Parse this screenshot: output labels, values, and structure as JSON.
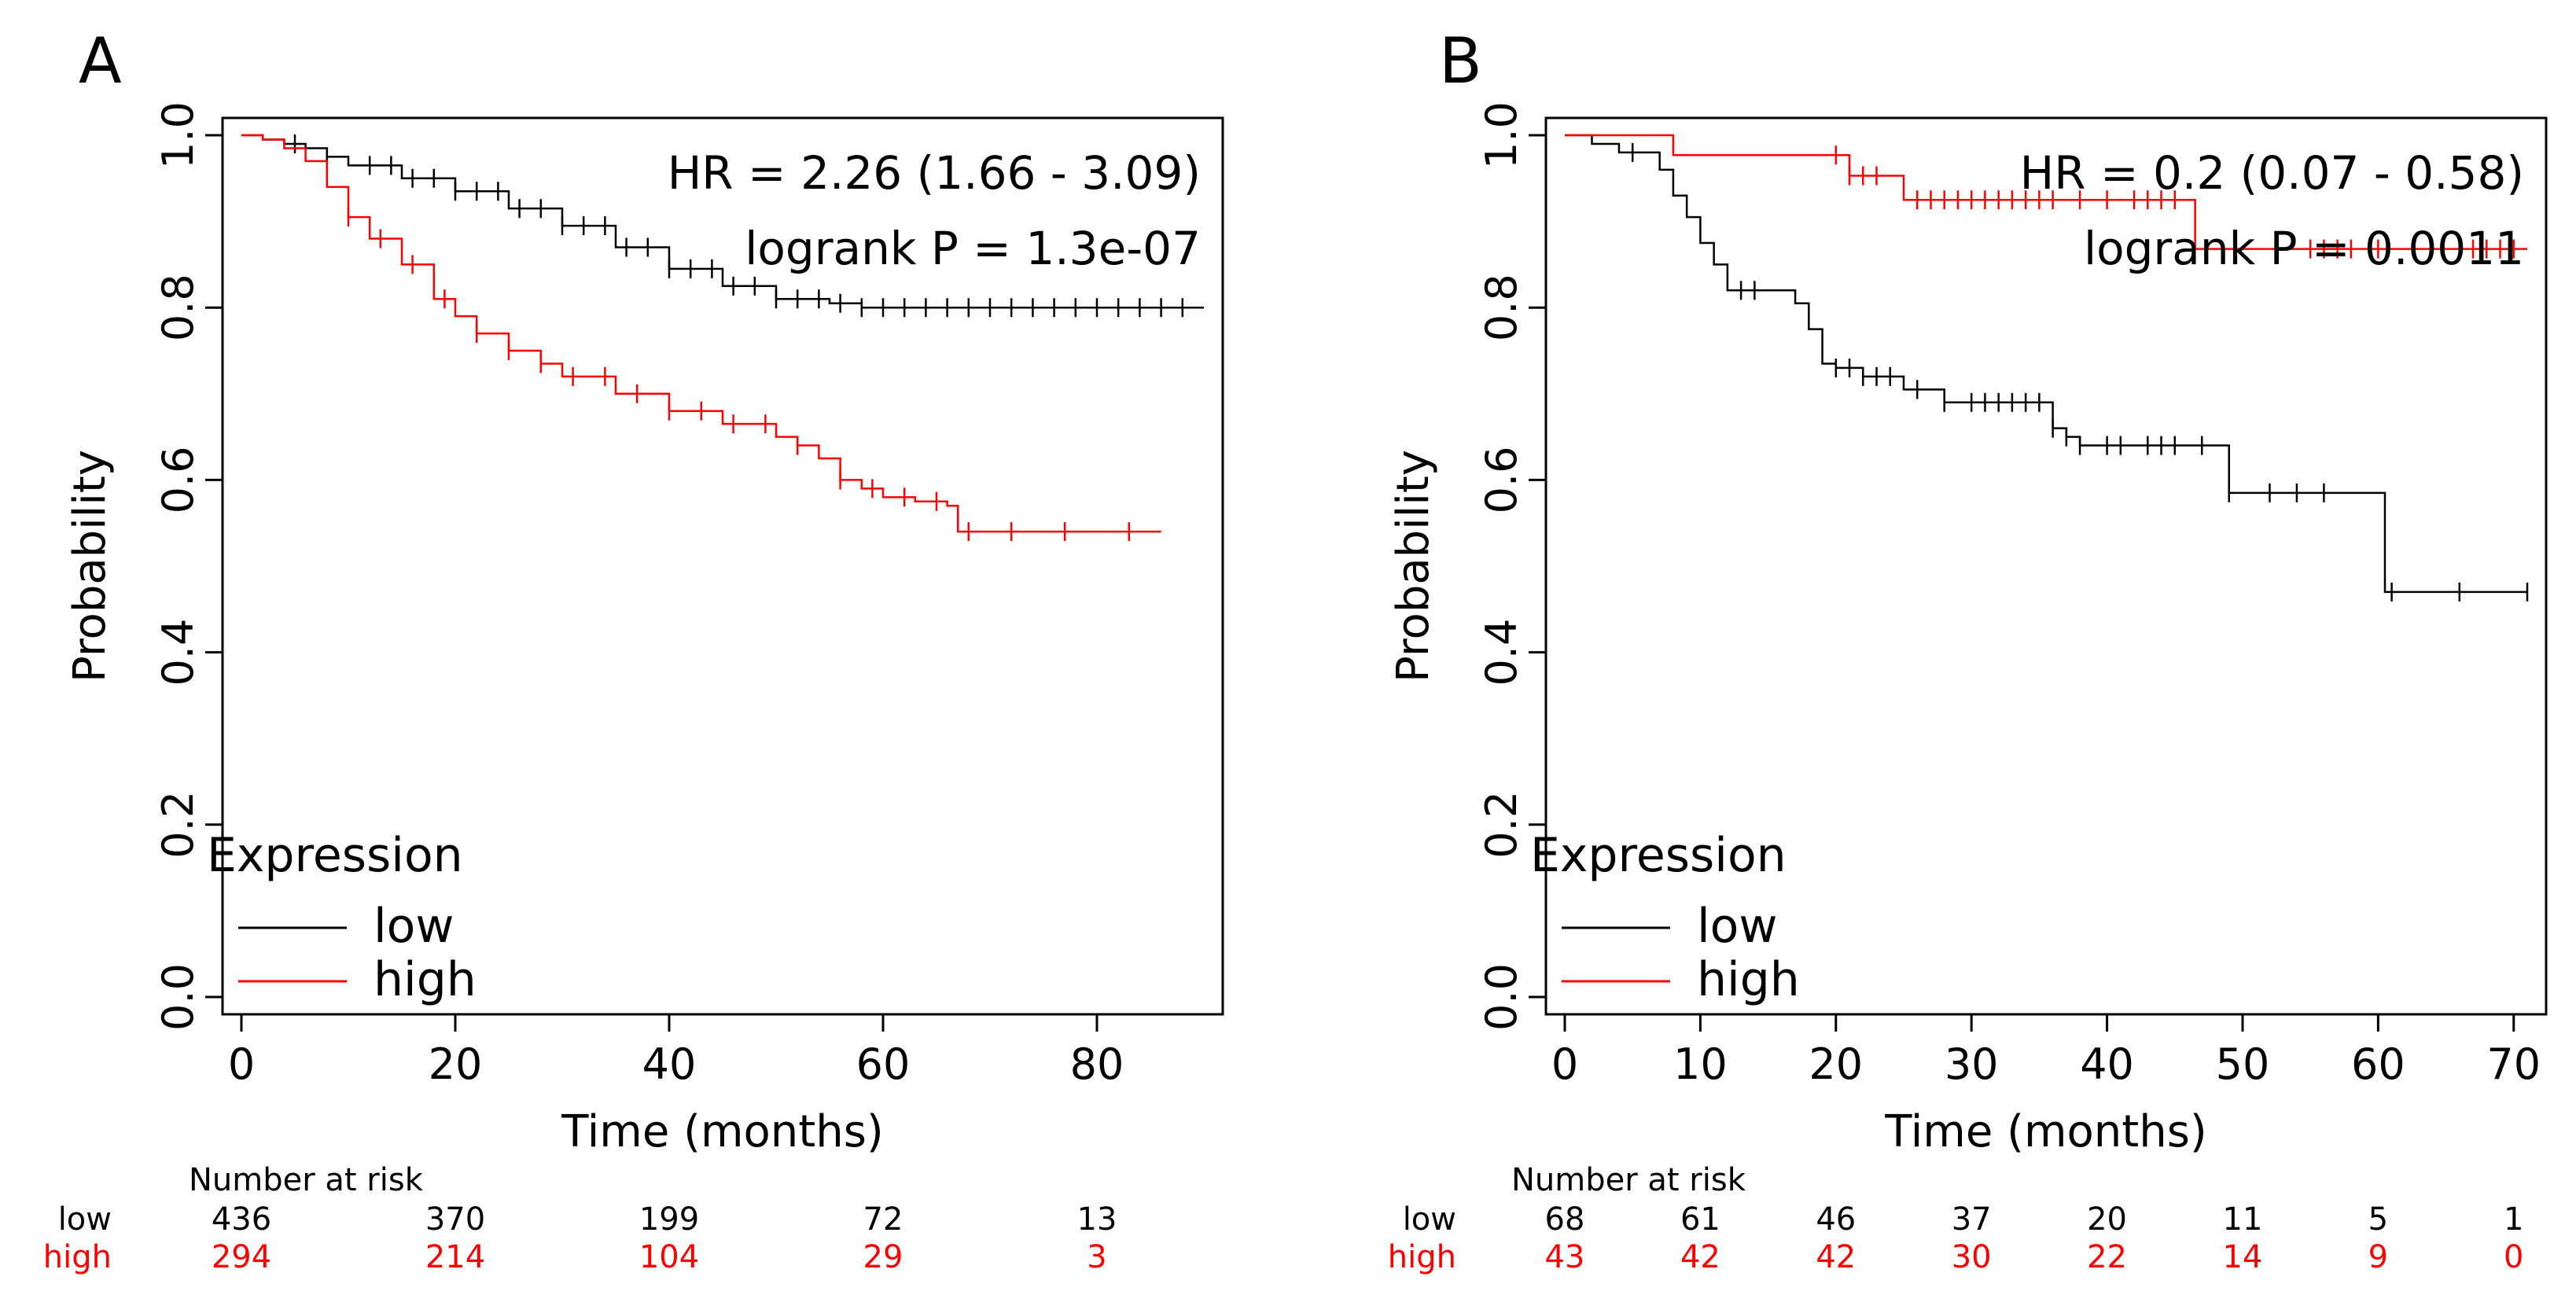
{
  "chart_data": [
    {
      "type": "line",
      "panel_label": "A",
      "title": "",
      "xlabel": "Time (months)",
      "ylabel": "Probability",
      "xlim": [
        0,
        90
      ],
      "ylim": [
        0,
        1
      ],
      "xticks": [
        "0",
        "20",
        "40",
        "60",
        "80"
      ],
      "yticks": [
        "0.0",
        "0.2",
        "0.4",
        "0.6",
        "0.8",
        "1.0"
      ],
      "xtick_values": [
        0,
        20,
        40,
        60,
        80
      ],
      "ytick_values": [
        0,
        0.2,
        0.4,
        0.6,
        0.8,
        1.0
      ],
      "grid": false,
      "annotations": [
        "HR = 2.26 (1.66 - 3.09)",
        "logrank P = 1.3e-07"
      ],
      "legend": {
        "title": "Expression",
        "entries": [
          "low",
          "high"
        ],
        "position": "bottom-left"
      },
      "series": [
        {
          "name": "low",
          "color": "#000000",
          "x": [
            0,
            2,
            4,
            6,
            8,
            10,
            15,
            20,
            25,
            30,
            35,
            40,
            45,
            50,
            55,
            58,
            60,
            65,
            70,
            75,
            80,
            85,
            90
          ],
          "y": [
            1.0,
            0.995,
            0.99,
            0.985,
            0.975,
            0.965,
            0.95,
            0.935,
            0.915,
            0.895,
            0.87,
            0.845,
            0.825,
            0.81,
            0.805,
            0.8,
            0.8,
            0.8,
            0.8,
            0.8,
            0.8,
            0.8,
            0.8
          ],
          "censor_x": [
            5,
            8,
            12,
            14,
            16,
            18,
            20,
            22,
            24,
            26,
            28,
            30,
            32,
            34,
            36,
            38,
            40,
            42,
            44,
            46,
            48,
            50,
            52,
            54,
            56,
            58,
            60,
            62,
            64,
            66,
            68,
            70,
            72,
            74,
            76,
            78,
            80,
            82,
            84,
            86,
            88
          ]
        },
        {
          "name": "high",
          "color": "#ff0000",
          "x": [
            0,
            2,
            4,
            6,
            8,
            10,
            12,
            15,
            18,
            20,
            22,
            25,
            28,
            30,
            35,
            40,
            45,
            50,
            52,
            54,
            56,
            58,
            60,
            63,
            66,
            67,
            70,
            75,
            80,
            86
          ],
          "y": [
            1.0,
            0.995,
            0.985,
            0.97,
            0.94,
            0.905,
            0.88,
            0.85,
            0.81,
            0.79,
            0.77,
            0.75,
            0.735,
            0.72,
            0.7,
            0.68,
            0.665,
            0.65,
            0.64,
            0.625,
            0.6,
            0.59,
            0.58,
            0.575,
            0.57,
            0.54,
            0.54,
            0.54,
            0.54,
            0.54
          ],
          "censor_x": [
            10,
            13,
            16,
            19,
            22,
            25,
            28,
            31,
            34,
            37,
            40,
            43,
            46,
            49,
            52,
            56,
            59,
            62,
            65,
            68,
            72,
            77,
            83
          ]
        }
      ],
      "risk_table": {
        "title": "Number at risk",
        "times": [
          0,
          20,
          40,
          60,
          80
        ],
        "rows": [
          {
            "label": "low",
            "color": "#000000",
            "values": [
              "436",
              "370",
              "199",
              "72",
              "13"
            ]
          },
          {
            "label": "high",
            "color": "#ff0000",
            "values": [
              "294",
              "214",
              "104",
              "29",
              "3"
            ]
          }
        ]
      }
    },
    {
      "type": "line",
      "panel_label": "B",
      "title": "",
      "xlabel": "Time (months)",
      "ylabel": "Probability",
      "xlim": [
        0,
        71
      ],
      "ylim": [
        0,
        1
      ],
      "xticks": [
        "0",
        "10",
        "20",
        "30",
        "40",
        "50",
        "60",
        "70"
      ],
      "yticks": [
        "0.0",
        "0.2",
        "0.4",
        "0.6",
        "0.8",
        "1.0"
      ],
      "xtick_values": [
        0,
        10,
        20,
        30,
        40,
        50,
        60,
        70
      ],
      "ytick_values": [
        0,
        0.2,
        0.4,
        0.6,
        0.8,
        1.0
      ],
      "grid": false,
      "annotations": [
        "HR = 0.2 (0.07 - 0.58)",
        "logrank P = 0.0011"
      ],
      "legend": {
        "title": "Expression",
        "entries": [
          "low",
          "high"
        ],
        "position": "bottom-left"
      },
      "series": [
        {
          "name": "low",
          "color": "#000000",
          "x": [
            0,
            2,
            4,
            7,
            8,
            9,
            10,
            11,
            12,
            13,
            17,
            18,
            19,
            20,
            22,
            25,
            28,
            36,
            37,
            38,
            49,
            60.5,
            71
          ],
          "y": [
            1.0,
            0.99,
            0.98,
            0.96,
            0.93,
            0.905,
            0.875,
            0.85,
            0.82,
            0.82,
            0.805,
            0.775,
            0.735,
            0.73,
            0.72,
            0.705,
            0.69,
            0.66,
            0.65,
            0.64,
            0.585,
            0.47,
            0.47
          ],
          "censor_x": [
            5,
            13,
            14,
            20,
            21,
            22,
            23,
            24,
            26,
            28,
            30,
            31,
            32,
            33,
            34,
            35,
            36,
            37,
            38,
            40,
            41,
            43,
            44,
            45,
            47,
            49,
            52,
            54,
            56,
            61,
            66,
            71
          ]
        },
        {
          "name": "high",
          "color": "#ff0000",
          "x": [
            0,
            8,
            20,
            21,
            25,
            46.5,
            71
          ],
          "y": [
            1.0,
            0.977,
            0.977,
            0.953,
            0.925,
            0.868,
            0.868
          ],
          "censor_x": [
            20,
            21,
            22,
            23,
            26,
            27,
            28,
            29,
            30,
            31,
            32,
            33,
            34,
            35,
            36,
            38,
            40,
            42,
            43,
            44,
            45,
            55,
            56,
            57,
            58,
            60,
            66,
            67,
            68,
            69,
            70
          ]
        }
      ],
      "risk_table": {
        "title": "Number at risk",
        "times": [
          0,
          10,
          20,
          30,
          40,
          50,
          60,
          70
        ],
        "rows": [
          {
            "label": "low",
            "color": "#000000",
            "values": [
              "68",
              "61",
              "46",
              "37",
              "20",
              "11",
              "5",
              "1"
            ]
          },
          {
            "label": "high",
            "color": "#ff0000",
            "values": [
              "43",
              "42",
              "42",
              "30",
              "22",
              "14",
              "9",
              "0"
            ]
          }
        ]
      }
    }
  ]
}
